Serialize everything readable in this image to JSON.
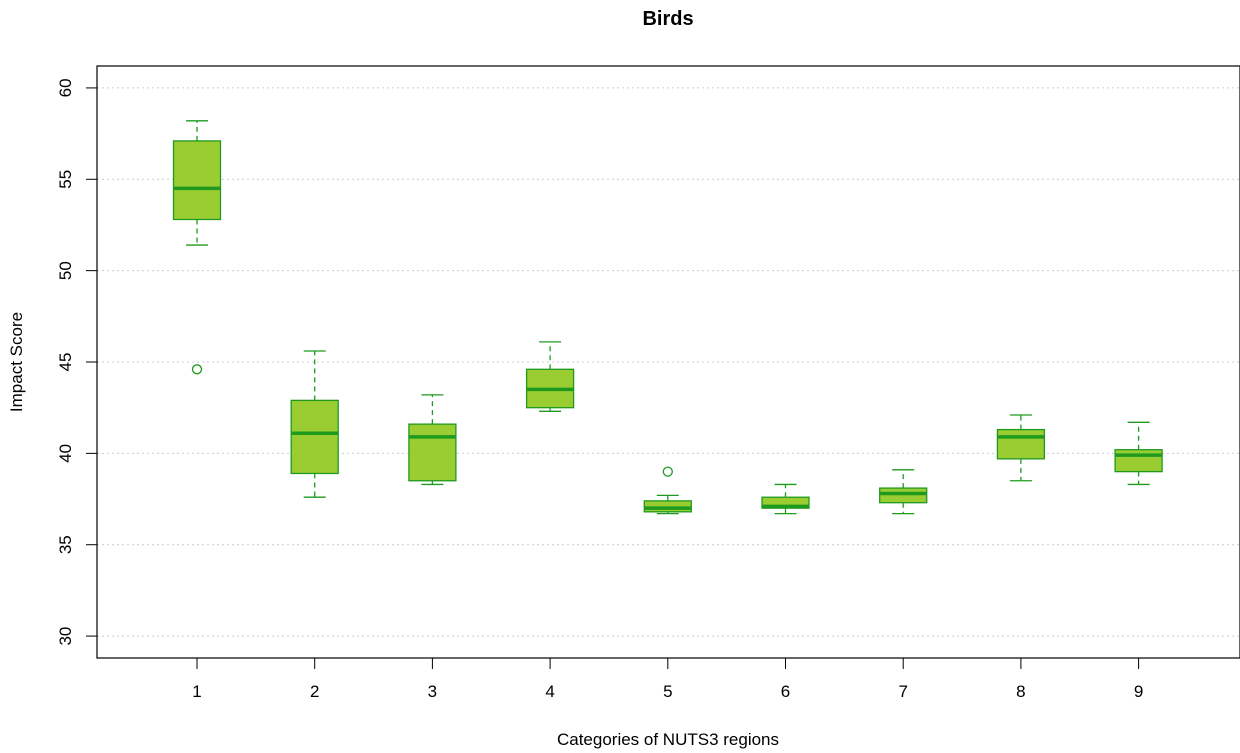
{
  "chart_data": {
    "type": "boxplot",
    "title": "Birds",
    "xlabel": "Categories of NUTS3 regions",
    "ylabel": "Impact Score",
    "ylim": [
      28.8,
      61.2
    ],
    "yticks": [
      30,
      35,
      40,
      45,
      50,
      55,
      60
    ],
    "grid": "horizontal dotted",
    "colors": {
      "fill": "#9acd32",
      "stroke": "#1f9a1f",
      "grid": "#cccccc",
      "frame": "#000000"
    },
    "categories": [
      "1",
      "2",
      "3",
      "4",
      "5",
      "6",
      "7",
      "8",
      "9"
    ],
    "boxes": [
      {
        "category": "1",
        "whisker_low": 51.4,
        "q1": 52.8,
        "median": 54.5,
        "q3": 57.1,
        "whisker_high": 58.2,
        "outliers": [
          44.6
        ]
      },
      {
        "category": "2",
        "whisker_low": 37.6,
        "q1": 38.9,
        "median": 41.1,
        "q3": 42.9,
        "whisker_high": 45.6,
        "outliers": []
      },
      {
        "category": "3",
        "whisker_low": 38.3,
        "q1": 38.5,
        "median": 40.9,
        "q3": 41.6,
        "whisker_high": 43.2,
        "outliers": []
      },
      {
        "category": "4",
        "whisker_low": 42.3,
        "q1": 42.5,
        "median": 43.5,
        "q3": 44.6,
        "whisker_high": 46.1,
        "outliers": []
      },
      {
        "category": "5",
        "whisker_low": 36.7,
        "q1": 36.8,
        "median": 37.0,
        "q3": 37.4,
        "whisker_high": 37.7,
        "outliers": [
          39.0
        ]
      },
      {
        "category": "6",
        "whisker_low": 36.7,
        "q1": 37.0,
        "median": 37.1,
        "q3": 37.6,
        "whisker_high": 38.3,
        "outliers": []
      },
      {
        "category": "7",
        "whisker_low": 36.7,
        "q1": 37.3,
        "median": 37.8,
        "q3": 38.1,
        "whisker_high": 39.1,
        "outliers": []
      },
      {
        "category": "8",
        "whisker_low": 38.5,
        "q1": 39.7,
        "median": 40.9,
        "q3": 41.3,
        "whisker_high": 42.1,
        "outliers": []
      },
      {
        "category": "9",
        "whisker_low": 38.3,
        "q1": 39.0,
        "median": 39.9,
        "q3": 40.2,
        "whisker_high": 41.7,
        "outliers": []
      }
    ]
  }
}
